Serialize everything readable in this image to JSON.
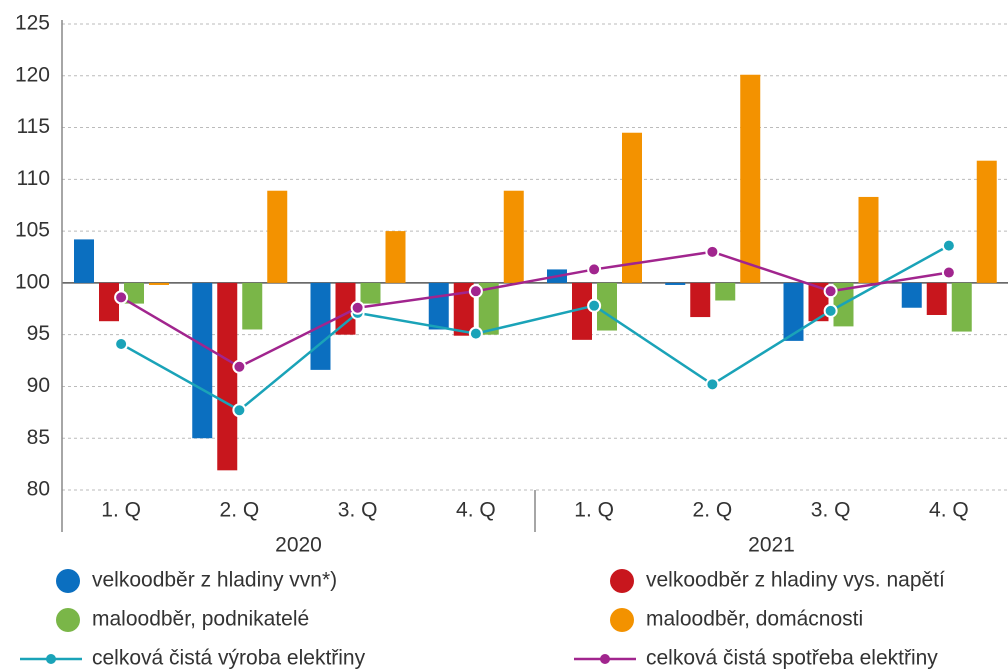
{
  "chart_data": {
    "type": "bar",
    "categories": [
      "1. Q",
      "2. Q",
      "3. Q",
      "4. Q",
      "1. Q",
      "2. Q",
      "3. Q",
      "4. Q"
    ],
    "groups": [
      "2020",
      "2021"
    ],
    "baseline": 100,
    "ylim": [
      80,
      125
    ],
    "yticks": [
      80,
      85,
      90,
      95,
      100,
      105,
      110,
      115,
      120,
      125
    ],
    "grid": true,
    "series": [
      {
        "name": "velkoodběr z hladiny vvn*)",
        "type": "bar",
        "color": "#0b6fc0",
        "values": [
          104.2,
          85,
          91.6,
          95.5,
          101.3,
          99.8,
          94.4,
          97.6
        ]
      },
      {
        "name": "velkoodběr z hladiny vys. napětí",
        "type": "bar",
        "color": "#c8161d",
        "values": [
          96.3,
          81.9,
          95,
          94.9,
          94.5,
          96.7,
          96.3,
          96.9
        ]
      },
      {
        "name": "maloodběr, podnikatelé",
        "type": "bar",
        "color": "#7ab648",
        "values": [
          98,
          95.5,
          98,
          95,
          95.4,
          98.3,
          95.8,
          95.3
        ]
      },
      {
        "name": "maloodběr, domácnosti",
        "type": "bar",
        "color": "#f39200",
        "values": [
          99.8,
          108.9,
          105,
          108.9,
          114.5,
          120.1,
          108.3,
          111.8
        ]
      },
      {
        "name": "celková čistá výroba elektřiny",
        "type": "line",
        "color": "#1aa3b8",
        "values": [
          94.1,
          87.7,
          97.1,
          95.1,
          97.8,
          90.2,
          97.3,
          103.6
        ]
      },
      {
        "name": "celková čistá spotřeba elektřiny",
        "type": "line",
        "color": "#a1258e",
        "values": [
          98.6,
          91.9,
          97.6,
          99.2,
          101.3,
          103,
          99.2,
          101
        ]
      }
    ]
  }
}
